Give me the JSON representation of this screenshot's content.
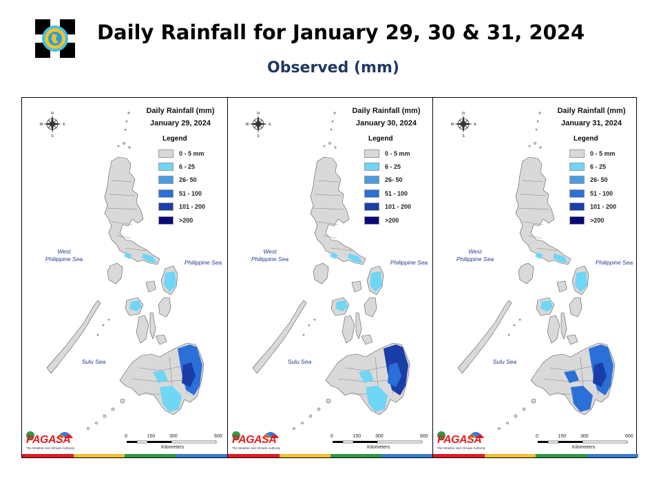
{
  "header": {
    "title": "Daily Rainfall for January 29, 30 & 31, 2024",
    "subtitle": "Observed (mm)"
  },
  "legend": {
    "title": "Legend",
    "classes": [
      {
        "label": "0 - 5 mm",
        "color": "#d9d9d9"
      },
      {
        "label": "6 - 25",
        "color": "#6fd6f5"
      },
      {
        "label": "26- 50",
        "color": "#4a9be0"
      },
      {
        "label": "51 - 100",
        "color": "#2b6fd8"
      },
      {
        "label": "101 - 200",
        "color": "#1a3ea8"
      },
      {
        "label": ">200",
        "color": "#0a0a7a"
      }
    ]
  },
  "seas": {
    "west": "West\nPhilippine Sea",
    "philippine": "Philippine Sea",
    "sulu": "Sulu Sea"
  },
  "compass": {
    "n": "N",
    "s": "S",
    "e": "E",
    "w": "W"
  },
  "scale": {
    "ticks": [
      "0",
      "150",
      "300",
      "600"
    ],
    "unit": "Kilometers"
  },
  "brand": {
    "name": "PAGASA",
    "small": "DOST",
    "tagline": "The Weather and Climate Authority",
    "brand_colors": [
      "#e31b23",
      "#f2c12e",
      "#2e9a47",
      "#3a7bd5"
    ]
  },
  "map_colors": {
    "land": "#d9d9d9",
    "outline": "#555555"
  },
  "panels": [
    {
      "title": "Daily Rainfall (mm)",
      "date": "January 29, 2024",
      "rain_levels": {
        "luzon_south": 1,
        "visayas_east": 1,
        "mindanao_east": 3,
        "mindanao_core": 4,
        "mindanao_south": 1
      }
    },
    {
      "title": "Daily Rainfall (mm)",
      "date": "January 30, 2024",
      "rain_levels": {
        "luzon_south": 1,
        "visayas_east": 1,
        "mindanao_east": 4,
        "mindanao_core": 3,
        "mindanao_south": 1
      }
    },
    {
      "title": "Daily Rainfall (mm)",
      "date": "January 31, 2024",
      "rain_levels": {
        "luzon_south": 1,
        "visayas_east": 1,
        "mindanao_east": 3,
        "mindanao_core": 4,
        "mindanao_south": 3
      }
    }
  ]
}
